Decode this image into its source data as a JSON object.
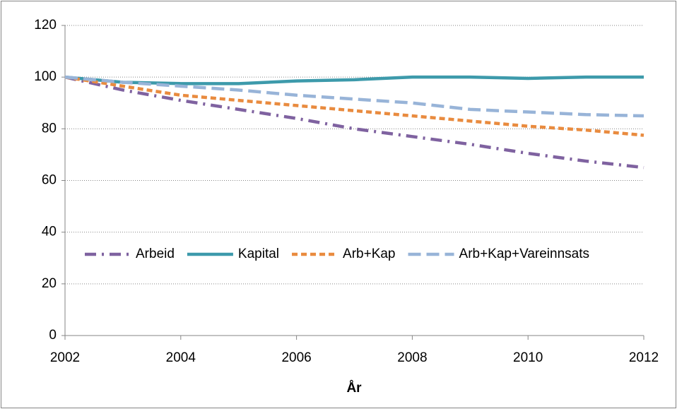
{
  "chart_data": {
    "type": "line",
    "xlabel": "År",
    "x": [
      2002,
      2003,
      2004,
      2005,
      2006,
      2007,
      2008,
      2009,
      2010,
      2011,
      2012
    ],
    "series": [
      {
        "name": "Arbeid",
        "color": "#7f62a0",
        "dash": "dashdot",
        "values": [
          100,
          95,
          91,
          87.5,
          84,
          80,
          77,
          74,
          70.5,
          67.5,
          65
        ]
      },
      {
        "name": "Kapital",
        "color": "#3d9aab",
        "dash": "solid",
        "values": [
          100,
          98,
          97.5,
          97.5,
          98.5,
          99,
          100,
          100,
          99.5,
          100,
          100
        ]
      },
      {
        "name": "Arb+Kap",
        "color": "#e98b3f",
        "dash": "shortdash",
        "values": [
          100,
          96.5,
          93,
          91,
          89,
          87,
          85,
          83,
          81,
          79.5,
          77.5
        ]
      },
      {
        "name": "Arb+Kap+Vareinnsats",
        "color": "#98b4d8",
        "dash": "longdash",
        "values": [
          100,
          98,
          96.5,
          95,
          93,
          91.5,
          90,
          87.5,
          86.5,
          85.5,
          85
        ]
      }
    ],
    "xlim": [
      2002,
      2012
    ],
    "xticks": [
      2002,
      2004,
      2006,
      2008,
      2010,
      2012
    ],
    "ylim": [
      0,
      120
    ],
    "yticks": [
      0,
      20,
      40,
      60,
      80,
      100,
      120
    ],
    "grid": true,
    "legend": "center"
  }
}
